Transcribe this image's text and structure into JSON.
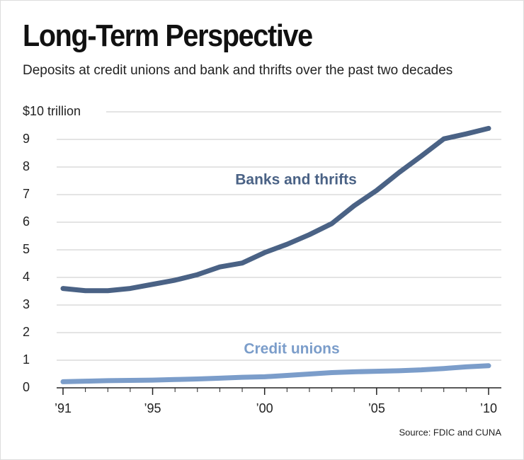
{
  "chart_data": {
    "type": "line",
    "title": "Long-Term Perspective",
    "subtitle": "Deposits at credit unions and bank and thrifts over the past two decades",
    "source": "Source: FDIC and CUNA",
    "x": [
      1991,
      1992,
      1993,
      1994,
      1995,
      1996,
      1997,
      1998,
      1999,
      2000,
      2001,
      2002,
      2003,
      2004,
      2005,
      2006,
      2007,
      2008,
      2009,
      2010
    ],
    "series": [
      {
        "name": "Banks and thrifts",
        "color": "#4a6285",
        "values": [
          3.6,
          3.52,
          3.52,
          3.6,
          3.75,
          3.9,
          4.1,
          4.38,
          4.52,
          4.9,
          5.2,
          5.55,
          5.95,
          6.6,
          7.15,
          7.8,
          8.4,
          9.02,
          9.2,
          9.4
        ]
      },
      {
        "name": "Credit unions",
        "color": "#7b9dca",
        "values": [
          0.22,
          0.24,
          0.26,
          0.27,
          0.28,
          0.3,
          0.32,
          0.35,
          0.38,
          0.4,
          0.45,
          0.5,
          0.55,
          0.58,
          0.6,
          0.62,
          0.65,
          0.7,
          0.76,
          0.8
        ]
      }
    ],
    "xlim": [
      1991,
      2010
    ],
    "xticks": [
      {
        "value": 1991,
        "label": "’91"
      },
      {
        "value": 1995,
        "label": "’95"
      },
      {
        "value": 2000,
        "label": "’00"
      },
      {
        "value": 2005,
        "label": "’05"
      },
      {
        "value": 2010,
        "label": "’10"
      }
    ],
    "ylim": [
      0,
      10
    ],
    "yticks": [
      0,
      1,
      2,
      3,
      4,
      5,
      6,
      7,
      8,
      9,
      {
        "value": 10,
        "label": "$10 trillion"
      }
    ],
    "grid": true
  }
}
